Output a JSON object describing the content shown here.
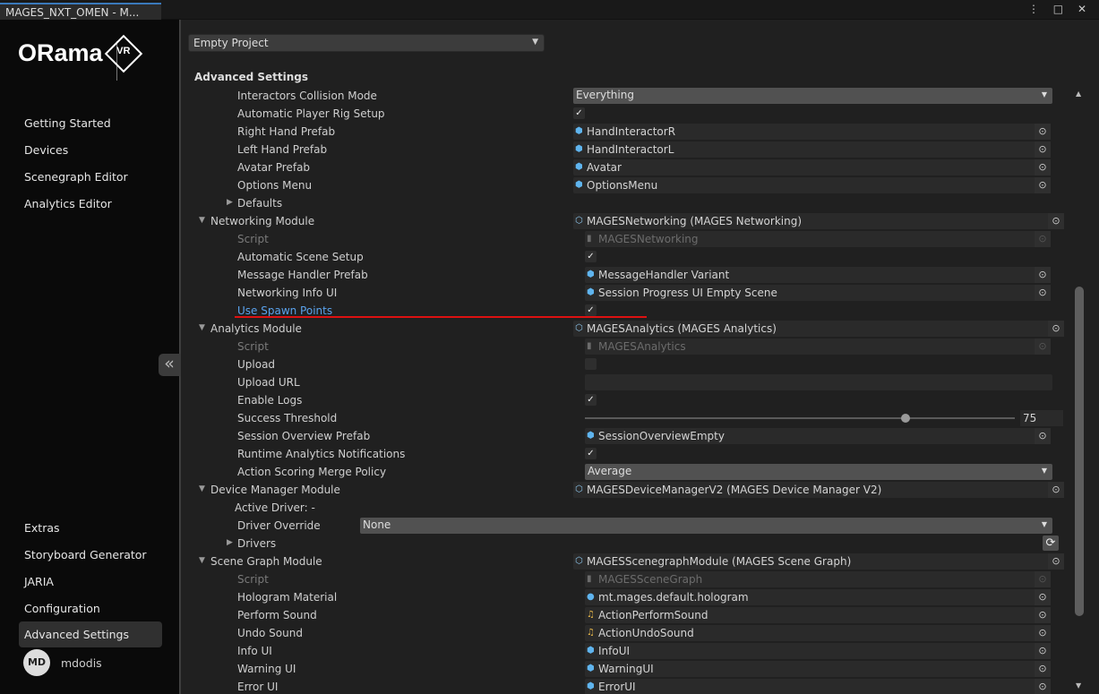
{
  "window": {
    "tab_title": "MAGES_NXT_OMEN - M...",
    "controls": [
      "⋮",
      "□",
      "✕"
    ]
  },
  "sidebar": {
    "logo": {
      "text": "ORama",
      "mark": "VR"
    },
    "top_items": [
      {
        "label": "Getting Started"
      },
      {
        "label": "Devices"
      },
      {
        "label": "Scenegraph Editor"
      },
      {
        "label": "Analytics Editor"
      }
    ],
    "bottom_items": [
      {
        "label": "Extras"
      },
      {
        "label": "Storyboard Generator"
      },
      {
        "label": "JARIA"
      },
      {
        "label": "Configuration"
      },
      {
        "label": "Advanced Settings",
        "active": true
      }
    ],
    "collapse_icon": "«",
    "user": {
      "initials": "MD",
      "name": "mdodis"
    }
  },
  "main": {
    "project_select": "Empty Project",
    "section_title": "Advanced Settings",
    "highlight_color": "#dd1111",
    "rows": [
      {
        "label": "Interactors Collision Mode",
        "lv": 1,
        "type": "dropdown",
        "value": "Everything",
        "vx": "a"
      },
      {
        "label": "Automatic Player Rig Setup",
        "lv": 1,
        "type": "check",
        "checked": true,
        "vx": "a"
      },
      {
        "label": "Right Hand Prefab",
        "lv": 1,
        "type": "obj",
        "icon": "prefab-icon",
        "value": "HandInteractorR",
        "vx": "a"
      },
      {
        "label": "Left Hand Prefab",
        "lv": 1,
        "type": "obj",
        "icon": "prefab-icon",
        "value": "HandInteractorL",
        "vx": "a"
      },
      {
        "label": "Avatar Prefab",
        "lv": 1,
        "type": "obj",
        "icon": "prefab-icon",
        "value": "Avatar",
        "vx": "a"
      },
      {
        "label": "Options Menu",
        "lv": 1,
        "type": "obj",
        "icon": "prefab-icon",
        "value": "OptionsMenu",
        "vx": "a"
      },
      {
        "label": "Defaults",
        "lv": 1,
        "foldout": "closed",
        "type": "none"
      },
      {
        "label": "Networking Module",
        "lv": 0,
        "foldout": "open",
        "type": "obj",
        "icon": "module-icon",
        "value": "MAGESNetworking (MAGES Networking)",
        "vx": "a",
        "wide": true
      },
      {
        "label": "Script",
        "lv": 1,
        "dim": true,
        "type": "obj",
        "disabled": true,
        "icon": "script-icon",
        "value": "MAGESNetworking",
        "vx": "b"
      },
      {
        "label": "Automatic Scene Setup",
        "lv": 1,
        "type": "check",
        "checked": true,
        "vx": "b"
      },
      {
        "label": "Message Handler Prefab",
        "lv": 1,
        "type": "obj",
        "icon": "prefab-icon",
        "value": "MessageHandler Variant",
        "vx": "b"
      },
      {
        "label": "Networking Info UI",
        "lv": 1,
        "type": "obj",
        "icon": "prefab-icon",
        "value": "Session Progress UI Empty Scene",
        "vx": "b"
      },
      {
        "label": "Use Spawn Points",
        "lv": 1,
        "link": true,
        "type": "check",
        "checked": true,
        "vx": "b"
      },
      {
        "label": "Analytics Module",
        "lv": 0,
        "foldout": "open",
        "type": "obj",
        "icon": "module-icon",
        "value": "MAGESAnalytics (MAGES Analytics)",
        "vx": "a",
        "wide": true
      },
      {
        "label": "Script",
        "lv": 1,
        "dim": true,
        "type": "obj",
        "disabled": true,
        "icon": "script-icon",
        "value": "MAGESAnalytics",
        "vx": "b"
      },
      {
        "label": "Upload",
        "lv": 1,
        "type": "check",
        "checked": false,
        "vx": "b"
      },
      {
        "label": "Upload URL",
        "lv": 1,
        "type": "text",
        "value": "",
        "vx": "b"
      },
      {
        "label": "Enable Logs",
        "lv": 1,
        "type": "check",
        "checked": true,
        "vx": "b"
      },
      {
        "label": "Success Threshold",
        "lv": 1,
        "type": "slider",
        "value": "75",
        "fraction": 0.75,
        "vx": "b"
      },
      {
        "label": "Session Overview Prefab",
        "lv": 1,
        "type": "obj",
        "icon": "prefab-icon",
        "value": "SessionOverviewEmpty",
        "vx": "b"
      },
      {
        "label": "Runtime Analytics Notifications",
        "lv": 1,
        "type": "check",
        "checked": true,
        "vx": "b"
      },
      {
        "label": "Action Scoring Merge Policy",
        "lv": 1,
        "type": "dropdown",
        "value": "Average",
        "vx": "b"
      },
      {
        "label": "Device Manager Module",
        "lv": 0,
        "foldout": "open",
        "type": "obj",
        "icon": "module-icon",
        "value": "MAGESDeviceManagerV2 (MAGES Device Manager V2)",
        "vx": "a",
        "wide": true
      },
      {
        "label": "Active Driver: -",
        "lv": 2,
        "type": "none"
      },
      {
        "label": "Driver Override",
        "lv": 1,
        "type": "dropdown",
        "value": "None",
        "vx": "c"
      },
      {
        "label": "Drivers",
        "lv": 1,
        "foldout": "closed",
        "type": "refresh",
        "icon": "refresh-icon"
      },
      {
        "label": "Scene Graph Module",
        "lv": 0,
        "foldout": "open",
        "type": "obj",
        "icon": "module-icon",
        "value": "MAGESScenegraphModule (MAGES Scene Graph)",
        "vx": "a",
        "wide": true
      },
      {
        "label": "Script",
        "lv": 1,
        "dim": true,
        "type": "obj",
        "disabled": true,
        "icon": "script-icon",
        "value": "MAGESSceneGraph",
        "vx": "b"
      },
      {
        "label": "Hologram Material",
        "lv": 1,
        "type": "obj",
        "icon": "material-icon",
        "value": "mt.mages.default.hologram",
        "vx": "b"
      },
      {
        "label": "Perform Sound",
        "lv": 1,
        "type": "obj",
        "icon": "audio-icon",
        "value": "ActionPerformSound",
        "vx": "b"
      },
      {
        "label": "Undo Sound",
        "lv": 1,
        "type": "obj",
        "icon": "audio-icon",
        "value": "ActionUndoSound",
        "vx": "b"
      },
      {
        "label": "Info UI",
        "lv": 1,
        "type": "obj",
        "icon": "prefab-icon",
        "value": "InfoUI",
        "vx": "b"
      },
      {
        "label": "Warning UI",
        "lv": 1,
        "type": "obj",
        "icon": "prefab-icon",
        "value": "WarningUI",
        "vx": "b"
      },
      {
        "label": "Error UI",
        "lv": 1,
        "type": "obj",
        "icon": "prefab-icon",
        "value": "ErrorUI",
        "vx": "b"
      }
    ]
  }
}
